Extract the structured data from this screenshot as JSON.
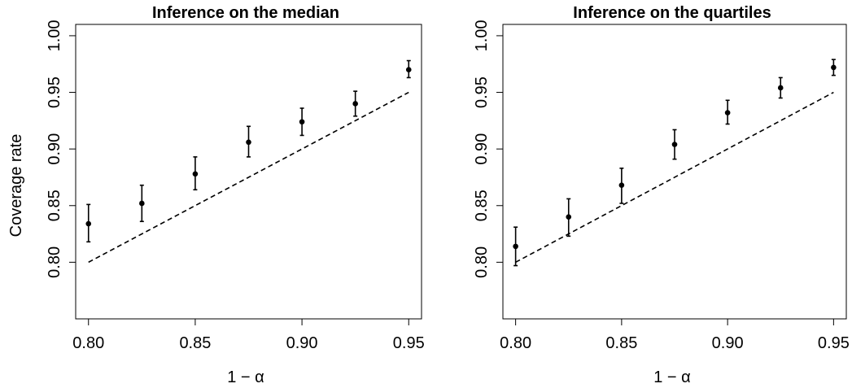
{
  "chart_data": [
    {
      "type": "scatter",
      "title": "Inference on the median",
      "xlabel": "1 − α",
      "ylabel": "Coverage rate",
      "xlim": [
        0.794,
        0.956
      ],
      "ylim": [
        0.75,
        1.01
      ],
      "x_ticks": [
        0.8,
        0.85,
        0.9,
        0.95
      ],
      "x_tick_labels": [
        "0.80",
        "0.85",
        "0.90",
        "0.95"
      ],
      "y_ticks": [
        0.8,
        0.85,
        0.9,
        0.95,
        1.0
      ],
      "y_tick_labels": [
        "0.80",
        "0.85",
        "0.90",
        "0.95",
        "1.00"
      ],
      "grid": false,
      "series": [
        {
          "x": [
            0.8,
            0.825,
            0.85,
            0.875,
            0.9,
            0.925,
            0.95
          ],
          "y": [
            0.834,
            0.852,
            0.878,
            0.906,
            0.924,
            0.94,
            0.97
          ],
          "lower": [
            0.818,
            0.836,
            0.864,
            0.893,
            0.912,
            0.929,
            0.963
          ],
          "upper": [
            0.851,
            0.868,
            0.893,
            0.92,
            0.936,
            0.951,
            0.978
          ]
        }
      ],
      "reference_line": {
        "x": [
          0.8,
          0.95
        ],
        "y": [
          0.8,
          0.95
        ],
        "style": "dashed"
      }
    },
    {
      "type": "scatter",
      "title": "Inference on the quartiles",
      "xlabel": "1 − α",
      "ylabel": "",
      "xlim": [
        0.794,
        0.956
      ],
      "ylim": [
        0.75,
        1.01
      ],
      "x_ticks": [
        0.8,
        0.85,
        0.9,
        0.95
      ],
      "x_tick_labels": [
        "0.80",
        "0.85",
        "0.90",
        "0.95"
      ],
      "y_ticks": [
        0.8,
        0.85,
        0.9,
        0.95,
        1.0
      ],
      "y_tick_labels": [
        "0.80",
        "0.85",
        "0.90",
        "0.95",
        "1.00"
      ],
      "grid": false,
      "series": [
        {
          "x": [
            0.8,
            0.825,
            0.85,
            0.875,
            0.9,
            0.925,
            0.95
          ],
          "y": [
            0.814,
            0.84,
            0.868,
            0.904,
            0.932,
            0.954,
            0.972
          ],
          "lower": [
            0.797,
            0.823,
            0.852,
            0.891,
            0.922,
            0.945,
            0.965
          ],
          "upper": [
            0.831,
            0.856,
            0.883,
            0.917,
            0.943,
            0.963,
            0.979
          ]
        }
      ],
      "reference_line": {
        "x": [
          0.8,
          0.95
        ],
        "y": [
          0.8,
          0.95
        ],
        "style": "dashed"
      }
    }
  ]
}
